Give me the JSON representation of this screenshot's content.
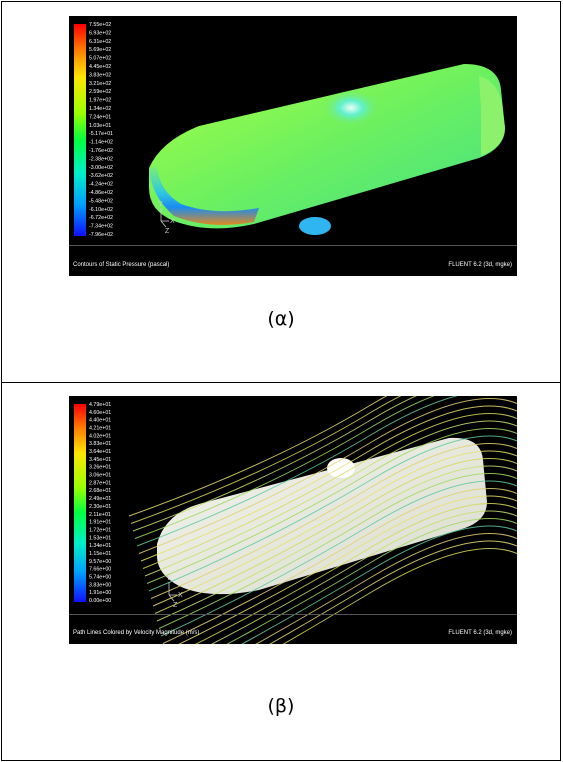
{
  "figure_a": {
    "legend_labels": [
      "7.55e+02",
      "6.93e+02",
      "6.31e+02",
      "5.69e+02",
      "5.07e+02",
      "4.45e+02",
      "3.83e+02",
      "3.21e+02",
      "2.59e+02",
      "1.97e+02",
      "1.34e+02",
      "7.24e+01",
      "1.03e+01",
      "-5.17e+01",
      "-1.14e+02",
      "-1.76e+02",
      "-2.38e+02",
      "-3.00e+02",
      "-3.62e+02",
      "-4.24e+02",
      "-4.86e+02",
      "-5.48e+02",
      "-6.10e+02",
      "-6.72e+02",
      "-7.34e+02",
      "-7.96e+02"
    ],
    "title": "Contours of Static Pressure (pascal)",
    "software": "FLUENT 6.2 (3d, mgke)",
    "axis_y": "Y",
    "axis_x": "X",
    "axis_z": "Z",
    "caption": "(α)"
  },
  "figure_b": {
    "legend_labels": [
      "4.79e+01",
      "4.60e+01",
      "4.40e+01",
      "4.21e+01",
      "4.02e+01",
      "3.83e+01",
      "3.64e+01",
      "3.45e+01",
      "3.26e+01",
      "3.06e+01",
      "2.87e+01",
      "2.68e+01",
      "2.49e+01",
      "2.30e+01",
      "2.11e+01",
      "1.91e+01",
      "1.72e+01",
      "1.53e+01",
      "1.34e+01",
      "1.15e+01",
      "9.57e+00",
      "7.66e+00",
      "5.74e+00",
      "3.83e+00",
      "1.91e+00",
      "0.00e+00"
    ],
    "title": "Path Lines Colored by Velocity Magnitude (m/s)",
    "software": "FLUENT 6.2 (3d, mgke)",
    "axis_y": "Y",
    "axis_x": "X",
    "axis_z": "Z",
    "caption": "(β)"
  }
}
